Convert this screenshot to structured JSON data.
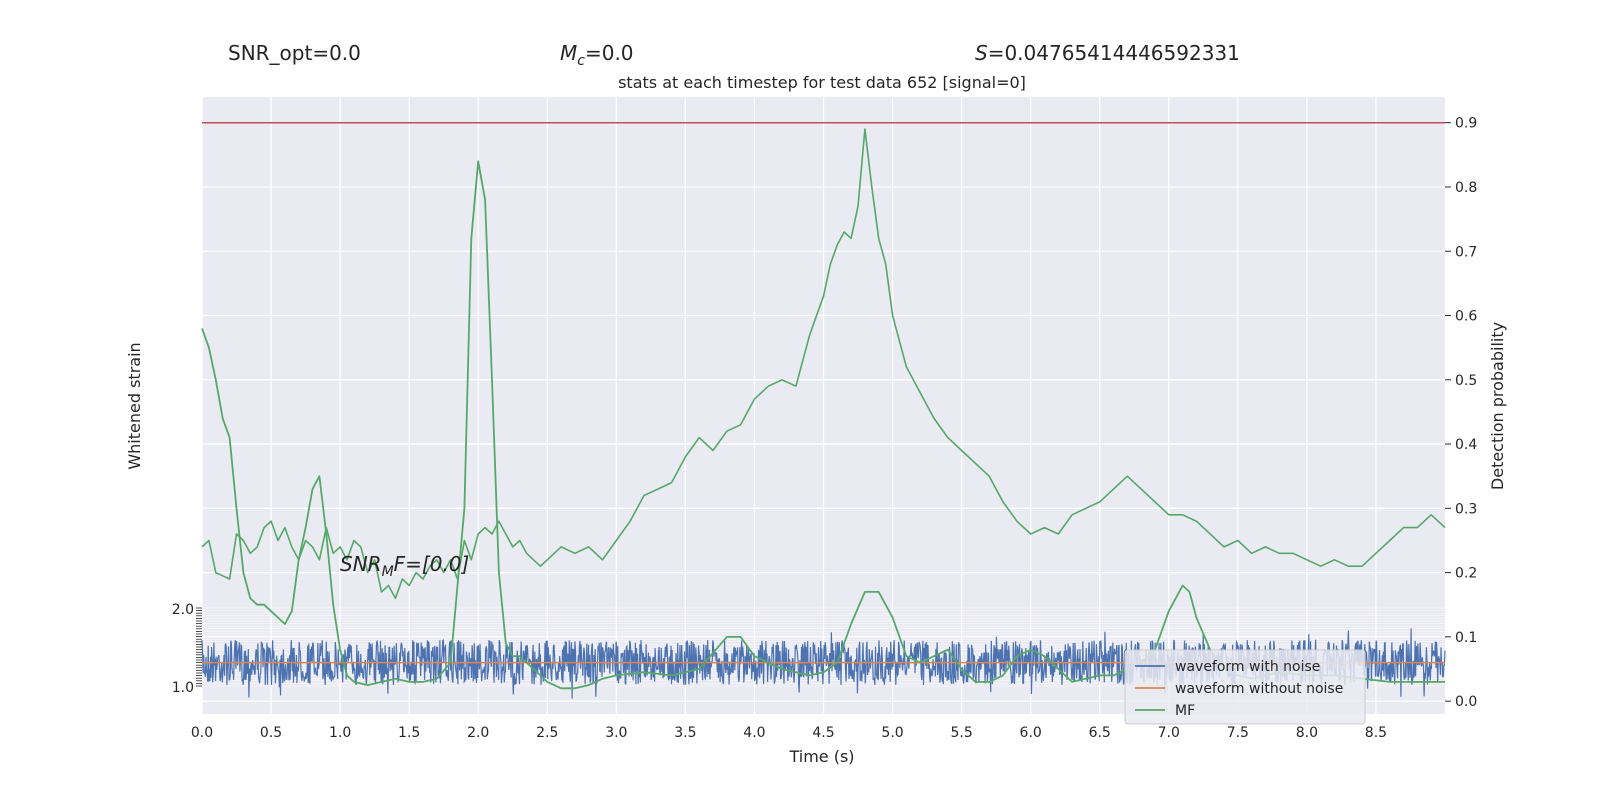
{
  "header": {
    "snr_opt": "SNR_opt=0.0",
    "mc_symbol": "M",
    "mc_sub": "c",
    "mc_value": "=0.0",
    "s_symbol": "S",
    "s_value": "=0.04765414446592331"
  },
  "annotation": {
    "snr_mf_prefix": "SNR",
    "snr_mf_sub": "M",
    "snr_mf_rest": "F=[0.0]"
  },
  "chart_data": {
    "type": "line",
    "title": "stats at each timestep for test data 652 [signal=0]",
    "xlabel": "Time (s)",
    "ylabel_left": "Whitened strain",
    "ylabel_right": "Detection probability",
    "xlim": [
      0.0,
      9.0
    ],
    "ylim_right": [
      -0.02,
      0.94
    ],
    "x_ticks": [
      "0.0",
      "0.5",
      "1.0",
      "1.5",
      "2.0",
      "2.5",
      "3.0",
      "3.5",
      "4.0",
      "4.5",
      "5.0",
      "5.5",
      "6.0",
      "6.5",
      "7.0",
      "7.5",
      "8.0",
      "8.5"
    ],
    "y_ticks_right": [
      "0.0",
      "0.1",
      "0.2",
      "0.3",
      "0.4",
      "0.5",
      "0.6",
      "0.7",
      "0.8",
      "0.9"
    ],
    "left_axis_ticks_visible": [
      "2.0",
      "1.0"
    ],
    "threshold": {
      "value": 0.9,
      "color": "#c44e52"
    },
    "grid": true,
    "legend_position": "lower-right",
    "legend": [
      {
        "label": "waveform with noise",
        "color": "#4c72b0"
      },
      {
        "label": "waveform without noise",
        "color": "#dd8452"
      },
      {
        "label": "MF",
        "color": "#55a868"
      }
    ],
    "series": [
      {
        "name": "waveform with noise",
        "color": "#4c72b0",
        "description_level": 0.06,
        "amplitude": 0.035
      },
      {
        "name": "waveform without noise",
        "color": "#dd8452",
        "level": 0.06
      },
      {
        "name": "Detection probability",
        "color": "#55a868",
        "x": [
          0.0,
          0.05,
          0.1,
          0.15,
          0.2,
          0.25,
          0.3,
          0.35,
          0.4,
          0.45,
          0.5,
          0.55,
          0.6,
          0.65,
          0.7,
          0.75,
          0.8,
          0.85,
          0.9,
          0.95,
          1.0,
          1.05,
          1.1,
          1.15,
          1.2,
          1.25,
          1.3,
          1.35,
          1.4,
          1.45,
          1.5,
          1.55,
          1.6,
          1.65,
          1.7,
          1.75,
          1.8,
          1.85,
          1.9,
          1.95,
          2.0,
          2.05,
          2.1,
          2.15,
          2.2,
          2.25,
          2.3,
          2.35,
          2.4,
          2.45,
          2.5,
          2.6,
          2.7,
          2.8,
          2.9,
          3.0,
          3.1,
          3.2,
          3.3,
          3.4,
          3.5,
          3.6,
          3.7,
          3.8,
          3.9,
          4.0,
          4.1,
          4.2,
          4.3,
          4.4,
          4.5,
          4.55,
          4.6,
          4.65,
          4.7,
          4.75,
          4.8,
          4.85,
          4.9,
          4.95,
          5.0,
          5.1,
          5.2,
          5.3,
          5.4,
          5.5,
          5.6,
          5.7,
          5.8,
          5.9,
          6.0,
          6.1,
          6.2,
          6.3,
          6.4,
          6.5,
          6.6,
          6.7,
          6.8,
          6.9,
          7.0,
          7.1,
          7.2,
          7.3,
          7.4,
          7.5,
          7.6,
          7.7,
          7.8,
          7.9,
          8.0,
          8.1,
          8.2,
          8.3,
          8.4,
          8.5,
          8.6,
          8.7,
          8.8,
          8.9,
          9.0
        ],
        "y": [
          0.24,
          0.25,
          0.2,
          0.195,
          0.19,
          0.26,
          0.25,
          0.23,
          0.24,
          0.27,
          0.28,
          0.25,
          0.27,
          0.24,
          0.22,
          0.25,
          0.24,
          0.22,
          0.27,
          0.23,
          0.24,
          0.22,
          0.25,
          0.24,
          0.2,
          0.22,
          0.17,
          0.18,
          0.16,
          0.19,
          0.18,
          0.2,
          0.19,
          0.21,
          0.22,
          0.2,
          0.22,
          0.19,
          0.25,
          0.22,
          0.26,
          0.27,
          0.26,
          0.28,
          0.26,
          0.24,
          0.25,
          0.23,
          0.22,
          0.21,
          0.22,
          0.24,
          0.23,
          0.24,
          0.22,
          0.25,
          0.28,
          0.32,
          0.33,
          0.34,
          0.38,
          0.41,
          0.39,
          0.42,
          0.43,
          0.47,
          0.49,
          0.5,
          0.49,
          0.57,
          0.63,
          0.68,
          0.71,
          0.73,
          0.72,
          0.77,
          0.89,
          0.8,
          0.72,
          0.68,
          0.6,
          0.52,
          0.48,
          0.44,
          0.41,
          0.39,
          0.37,
          0.35,
          0.31,
          0.28,
          0.26,
          0.27,
          0.26,
          0.29,
          0.3,
          0.31,
          0.33,
          0.35,
          0.33,
          0.31,
          0.29,
          0.29,
          0.28,
          0.26,
          0.24,
          0.25,
          0.23,
          0.24,
          0.23,
          0.23,
          0.22,
          0.21,
          0.22,
          0.21,
          0.21,
          0.23,
          0.25,
          0.27,
          0.27,
          0.29,
          0.27
        ]
      },
      {
        "name": "MF",
        "color": "#55a868",
        "x": [
          0.0,
          0.05,
          0.1,
          0.15,
          0.2,
          0.25,
          0.3,
          0.35,
          0.4,
          0.45,
          0.5,
          0.55,
          0.6,
          0.65,
          0.7,
          0.75,
          0.8,
          0.85,
          0.9,
          0.95,
          1.0,
          1.05,
          1.1,
          1.2,
          1.3,
          1.4,
          1.5,
          1.6,
          1.7,
          1.8,
          1.9,
          1.95,
          2.0,
          2.05,
          2.1,
          2.15,
          2.2,
          2.25,
          2.3,
          2.35,
          2.4,
          2.5,
          2.6,
          2.7,
          2.8,
          2.9,
          3.0,
          3.2,
          3.4,
          3.6,
          3.8,
          3.9,
          4.0,
          4.1,
          4.2,
          4.3,
          4.4,
          4.5,
          4.6,
          4.7,
          4.8,
          4.9,
          5.0,
          5.1,
          5.2,
          5.3,
          5.4,
          5.5,
          5.6,
          5.7,
          5.8,
          5.9,
          6.0,
          6.1,
          6.2,
          6.3,
          6.4,
          6.5,
          6.6,
          6.7,
          6.8,
          6.9,
          7.0,
          7.1,
          7.15,
          7.2,
          7.3,
          7.4,
          7.5,
          7.6,
          7.7,
          7.8,
          8.0,
          8.2,
          8.4,
          8.6,
          8.8,
          9.0
        ],
        "y": [
          0.58,
          0.55,
          0.5,
          0.44,
          0.41,
          0.3,
          0.2,
          0.16,
          0.15,
          0.15,
          0.14,
          0.13,
          0.12,
          0.14,
          0.22,
          0.27,
          0.33,
          0.35,
          0.26,
          0.15,
          0.08,
          0.04,
          0.03,
          0.025,
          0.03,
          0.035,
          0.03,
          0.03,
          0.035,
          0.06,
          0.3,
          0.72,
          0.84,
          0.78,
          0.5,
          0.2,
          0.09,
          0.07,
          0.07,
          0.06,
          0.05,
          0.03,
          0.02,
          0.02,
          0.025,
          0.035,
          0.04,
          0.045,
          0.04,
          0.05,
          0.1,
          0.1,
          0.07,
          0.06,
          0.05,
          0.045,
          0.04,
          0.045,
          0.06,
          0.12,
          0.17,
          0.17,
          0.13,
          0.07,
          0.06,
          0.07,
          0.08,
          0.05,
          0.03,
          0.03,
          0.04,
          0.07,
          0.08,
          0.07,
          0.05,
          0.03,
          0.035,
          0.04,
          0.04,
          0.05,
          0.06,
          0.08,
          0.14,
          0.18,
          0.17,
          0.13,
          0.08,
          0.05,
          0.04,
          0.035,
          0.04,
          0.045,
          0.04,
          0.04,
          0.035,
          0.03,
          0.03,
          0.03
        ]
      }
    ]
  }
}
